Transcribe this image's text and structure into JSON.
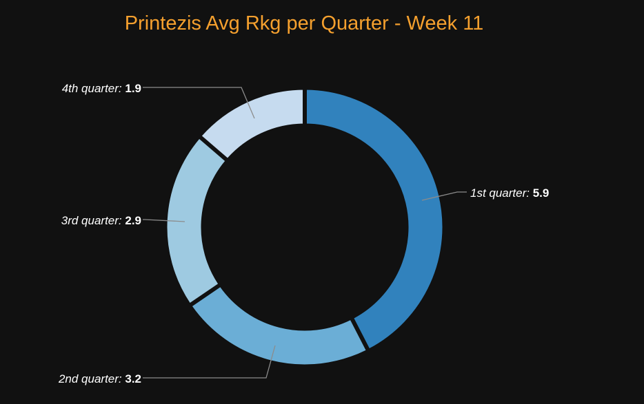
{
  "chart_data": {
    "type": "pie",
    "title": "Printezis Avg Rkg per Quarter - Week 11",
    "categories": [
      "1st quarter",
      "2nd quarter",
      "3rd quarter",
      "4th quarter"
    ],
    "values": [
      5.9,
      3.2,
      2.9,
      1.9
    ],
    "value_labels": [
      "5.9",
      "3.2",
      "2.9",
      "1.9"
    ],
    "colors": [
      "#3182bd",
      "#6baed6",
      "#9ecae1",
      "#c6dbef"
    ],
    "donut": true,
    "legend": "none"
  },
  "colors": {
    "background": "#111111",
    "title": "#f5a02e",
    "label_text": "#ffffff",
    "connector": "#8c8c8c"
  }
}
